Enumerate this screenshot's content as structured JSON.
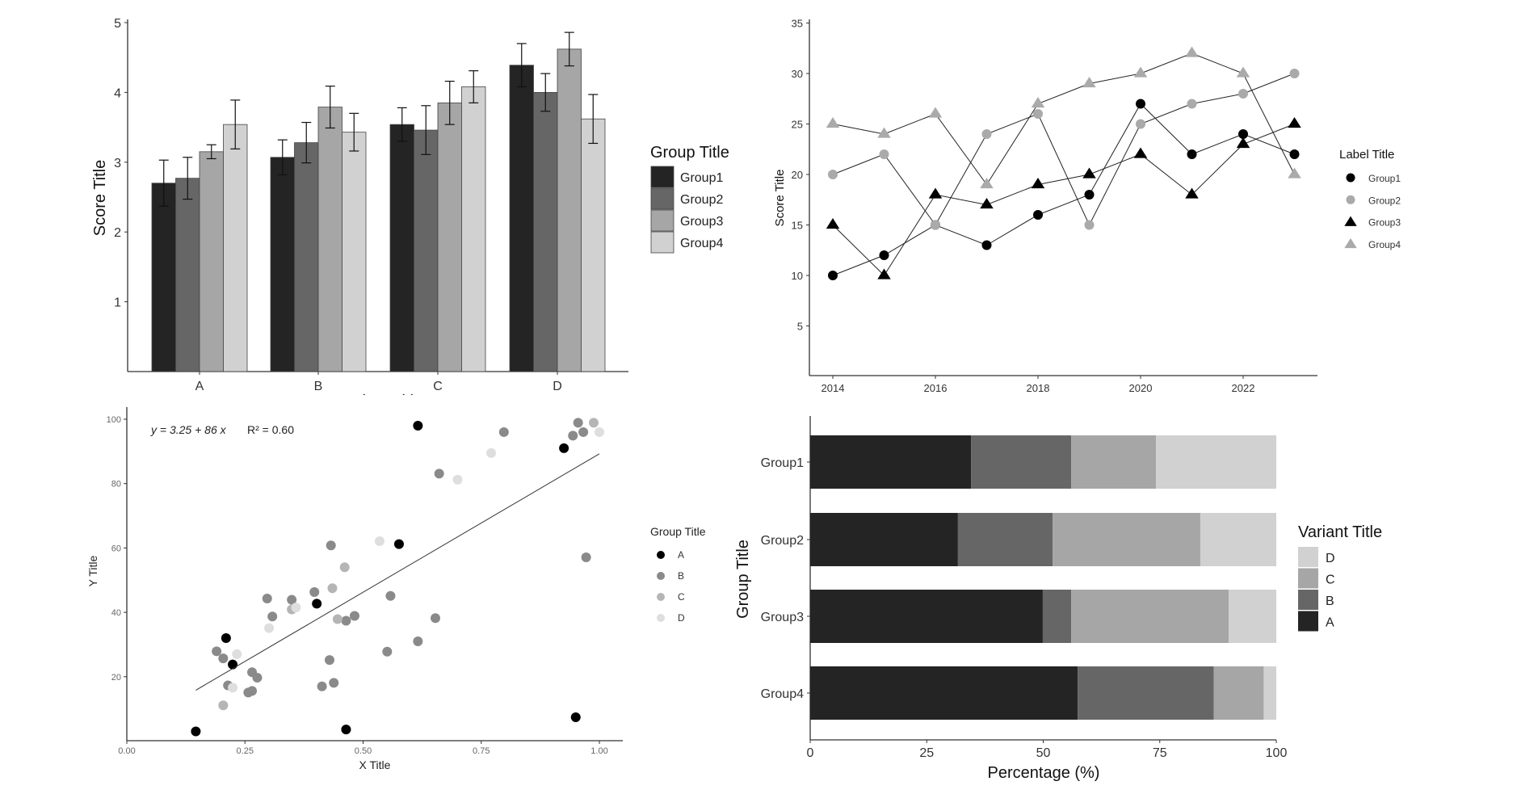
{
  "chart_data": [
    {
      "type": "bar",
      "categories": [
        "A",
        "B",
        "C",
        "D"
      ],
      "ylabel": "Score Title",
      "xlabel": "Variant Title",
      "ylim": [
        0,
        5
      ],
      "yticks": [
        "1",
        "2",
        "3",
        "4",
        "5"
      ],
      "legend_title": "Group Title",
      "legend_position": "right",
      "colors": [
        "#242424",
        "#666666",
        "#a6a6a6",
        "#d1d1d1"
      ],
      "series": [
        {
          "name": "Group1",
          "values": [
            2.7,
            3.07,
            3.54,
            4.39
          ],
          "errors": [
            0.33,
            0.25,
            0.24,
            0.31
          ]
        },
        {
          "name": "Group2",
          "values": [
            2.77,
            3.28,
            3.46,
            4.0
          ],
          "errors": [
            0.3,
            0.29,
            0.35,
            0.27
          ]
        },
        {
          "name": "Group3",
          "values": [
            3.15,
            3.79,
            3.85,
            4.62
          ],
          "errors": [
            0.1,
            0.3,
            0.31,
            0.24
          ]
        },
        {
          "name": "Group4",
          "values": [
            3.54,
            3.43,
            4.08,
            3.62
          ],
          "errors": [
            0.35,
            0.27,
            0.23,
            0.35
          ]
        }
      ]
    },
    {
      "type": "line",
      "x": [
        2014,
        2015,
        2016,
        2017,
        2018,
        2019,
        2020,
        2021,
        2022,
        2023
      ],
      "xticks": [
        "2014",
        "2016",
        "2018",
        "2020",
        "2022"
      ],
      "ylabel": "Score Title",
      "ylim": [
        0,
        35
      ],
      "yticks": [
        "5",
        "10",
        "15",
        "20",
        "25",
        "30",
        "35"
      ],
      "legend_title": "Label Title",
      "legend_position": "right",
      "series": [
        {
          "name": "Group1",
          "marker": "circle",
          "color": "#000000",
          "values": [
            10,
            12,
            15,
            13,
            16,
            18,
            27,
            22,
            24,
            22
          ]
        },
        {
          "name": "Group2",
          "marker": "circle",
          "color": "#aaaaaa",
          "values": [
            20,
            22,
            15,
            24,
            26,
            15,
            25,
            27,
            28,
            30
          ]
        },
        {
          "name": "Group3",
          "marker": "triangle",
          "color": "#000000",
          "values": [
            15,
            10,
            18,
            17,
            19,
            20,
            22,
            18,
            23,
            25
          ]
        },
        {
          "name": "Group4",
          "marker": "triangle",
          "color": "#aaaaaa",
          "values": [
            25,
            24,
            26,
            19,
            27,
            29,
            30,
            32,
            30,
            20
          ]
        }
      ]
    },
    {
      "type": "scatter",
      "xlabel": "X Title",
      "ylabel": "Y Title",
      "xlim": [
        0,
        1.05
      ],
      "ylim": [
        0,
        105
      ],
      "xticks": [
        "0.00",
        "0.25",
        "0.50",
        "0.75",
        "1.00"
      ],
      "yticks": [
        "20",
        "40",
        "60",
        "80",
        "100"
      ],
      "legend_title": "Group Title",
      "legend_position": "right",
      "annotation": {
        "equation": "y = 3.25 + 86 x",
        "r2": "R² = 0.60"
      },
      "fit": {
        "intercept": 3.25,
        "slope": 86,
        "x_range": [
          0.146,
          1.0
        ]
      },
      "series": [
        {
          "name": "A",
          "color": "#000000",
          "points": [
            [
              0.616,
              98.0
            ],
            [
              0.925,
              91.0
            ],
            [
              0.576,
              61.2
            ],
            [
              0.402,
              42.7
            ],
            [
              0.21,
              32.0
            ],
            [
              0.224,
              23.8
            ],
            [
              0.146,
              3.0
            ],
            [
              0.464,
              3.6
            ],
            [
              0.95,
              7.4
            ]
          ]
        },
        {
          "name": "B",
          "color": "#8a8a8a",
          "points": [
            [
              0.955,
              98.9
            ],
            [
              0.966,
              96.0
            ],
            [
              0.944,
              94.9
            ],
            [
              0.798,
              96.0
            ],
            [
              0.661,
              83.1
            ],
            [
              0.432,
              60.8
            ],
            [
              0.972,
              57.1
            ],
            [
              0.397,
              46.3
            ],
            [
              0.297,
              44.3
            ],
            [
              0.349,
              43.9
            ],
            [
              0.558,
              45.1
            ],
            [
              0.308,
              38.7
            ],
            [
              0.464,
              37.4
            ],
            [
              0.482,
              38.9
            ],
            [
              0.653,
              38.2
            ],
            [
              0.616,
              31.0
            ],
            [
              0.551,
              27.8
            ],
            [
              0.429,
              25.2
            ],
            [
              0.19,
              27.9
            ],
            [
              0.204,
              25.7
            ],
            [
              0.265,
              21.4
            ],
            [
              0.276,
              19.7
            ],
            [
              0.214,
              17.3
            ],
            [
              0.257,
              15.1
            ],
            [
              0.265,
              15.6
            ],
            [
              0.413,
              17.0
            ],
            [
              0.438,
              18.1
            ]
          ]
        },
        {
          "name": "C",
          "color": "#b5b5b5",
          "points": [
            [
              0.988,
              98.9
            ],
            [
              0.435,
              47.5
            ],
            [
              0.461,
              54.0
            ],
            [
              0.446,
              37.9
            ],
            [
              0.349,
              40.9
            ],
            [
              0.204,
              11.1
            ]
          ]
        },
        {
          "name": "D",
          "color": "#dedede",
          "points": [
            [
              1.0,
              96.0
            ],
            [
              0.771,
              89.5
            ],
            [
              0.7,
              81.2
            ],
            [
              0.535,
              62.1
            ],
            [
              0.358,
              41.5
            ],
            [
              0.301,
              35.1
            ],
            [
              0.233,
              27.0
            ],
            [
              0.224,
              16.6
            ]
          ]
        }
      ]
    },
    {
      "type": "bar",
      "orientation": "horizontal",
      "stacked": true,
      "categories": [
        "Group1",
        "Group2",
        "Group3",
        "Group4"
      ],
      "xlabel": "Percentage (%)",
      "ylabel": "Group Title",
      "xlim": [
        0,
        100
      ],
      "xticks": [
        "0",
        "25",
        "50",
        "75",
        "100"
      ],
      "legend_title": "Variant Title",
      "legend_position": "right",
      "series": [
        {
          "name": "A",
          "color": "#242424",
          "values": [
            34.5,
            31.7,
            49.9,
            57.4
          ]
        },
        {
          "name": "B",
          "color": "#666666",
          "values": [
            21.5,
            20.3,
            6.1,
            29.2
          ]
        },
        {
          "name": "C",
          "color": "#a6a6a6",
          "values": [
            18.2,
            31.7,
            33.8,
            10.7
          ]
        },
        {
          "name": "D",
          "color": "#d1d1d1",
          "values": [
            25.8,
            16.3,
            10.2,
            2.7
          ]
        }
      ]
    }
  ]
}
